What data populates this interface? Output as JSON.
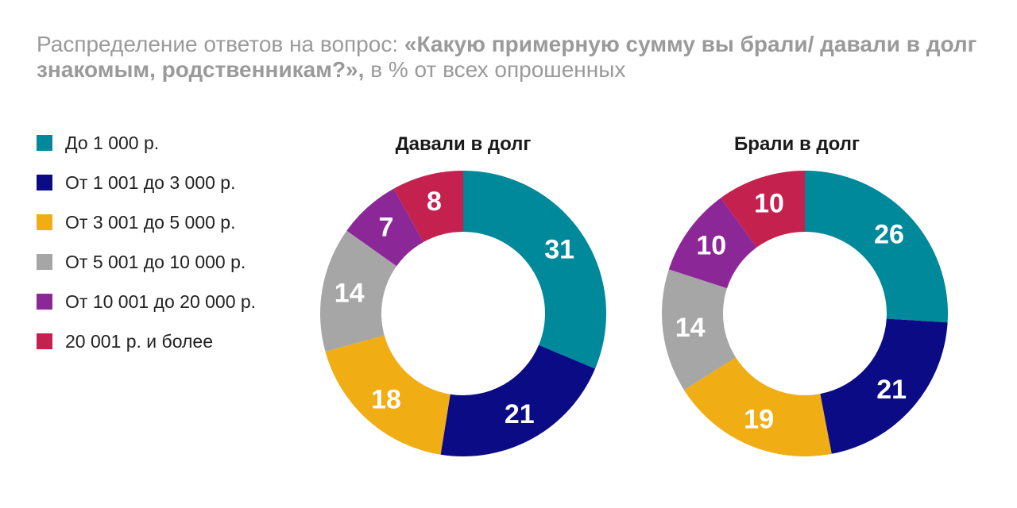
{
  "header": {
    "title_prefix": "Распределение ответов на вопрос: ",
    "title_bold": "«Какую примерную сумму вы брали/ давали в долг знакомым, родственникам?»,",
    "title_suffix": " в % от всех опрошенных"
  },
  "chart_data": [
    {
      "type": "pie",
      "title": "Давали в долг",
      "categories": [
        "До 1 000 р.",
        "От 1 001 до 3 000 р.",
        "От 3 001 до 5 000 р.",
        "От 5 001 до 10 000 р.",
        "От 10 001 до 20 000 р.",
        "20 001 р. и более"
      ],
      "values": [
        31,
        21,
        18,
        14,
        7,
        8
      ],
      "labels": [
        "31",
        "21",
        "18",
        "14",
        "7",
        "8"
      ],
      "donut": true
    },
    {
      "type": "pie",
      "title": "Брали в долг",
      "categories": [
        "До 1 000 р.",
        "От 1 001 до 3 000 р.",
        "От 3 001 до 5 000 р.",
        "От 5 001 до 10 000 р.",
        "От 10 001 до 20 000 р.",
        "20 001 р. и более"
      ],
      "values": [
        26,
        21,
        19,
        14,
        10,
        10
      ],
      "labels": [
        "26",
        "21",
        "19",
        "14",
        "10",
        "10"
      ],
      "donut": true
    }
  ],
  "legend": {
    "placement": "left",
    "items": [
      {
        "label": "До 1 000 р.",
        "color": "#00889b"
      },
      {
        "label": "От 1 001 до 3 000 р.",
        "color": "#0b0b85"
      },
      {
        "label": "От 3 001 до 5 000 р.",
        "color": "#f0ad14"
      },
      {
        "label": "От 5 001 до 10 000 р.",
        "color": "#a6a6a6"
      },
      {
        "label": "От 10 001 до 20 000 р.",
        "color": "#8c2797"
      },
      {
        "label": "20 001 р. и более",
        "color": "#c4214e"
      }
    ]
  }
}
